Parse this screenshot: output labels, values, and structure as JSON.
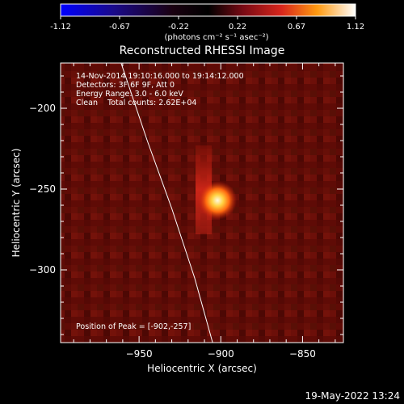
{
  "colorbar": {
    "ticks": [
      "-1.12",
      "-0.67",
      "-0.22",
      "0.22",
      "0.67",
      "1.12"
    ],
    "units": "(photons cm⁻² s⁻¹ asec⁻²)"
  },
  "chart_data": {
    "type": "heatmap",
    "title": "Reconstructed RHESSI Image",
    "xlabel": "Heliocentric X (arcsec)",
    "ylabel": "Heliocentric Y (arcsec)",
    "xlim": [
      -998,
      -825
    ],
    "ylim": [
      -345,
      -172
    ],
    "x_ticks": [
      -950,
      -900,
      -850
    ],
    "x_tick_labels": [
      "−950",
      "−900",
      "−850"
    ],
    "y_ticks": [
      -200,
      -250,
      -300
    ],
    "y_tick_labels": [
      "−200",
      "−250",
      "−300"
    ],
    "colorbar_range": [
      -1.12,
      1.12
    ],
    "peak": {
      "x": -902,
      "y": -257
    },
    "limb_curve": [
      [
        -961,
        -172
      ],
      [
        -945,
        -220
      ],
      [
        -930,
        -262
      ],
      [
        -916,
        -305
      ],
      [
        -905,
        -345
      ]
    ],
    "annotations": [
      "14-Nov-2014 19:10:16.000 to 19:14:12.000",
      "Detectors: 3F 6F 9F, Att 0",
      "Energy Range: 3.0 - 6.0 keV",
      "Clean    Total counts: 2.62E+04",
      "Position of Peak = [-902,-257]"
    ]
  },
  "footer": {
    "timestamp": "19-May-2022 13:24"
  }
}
